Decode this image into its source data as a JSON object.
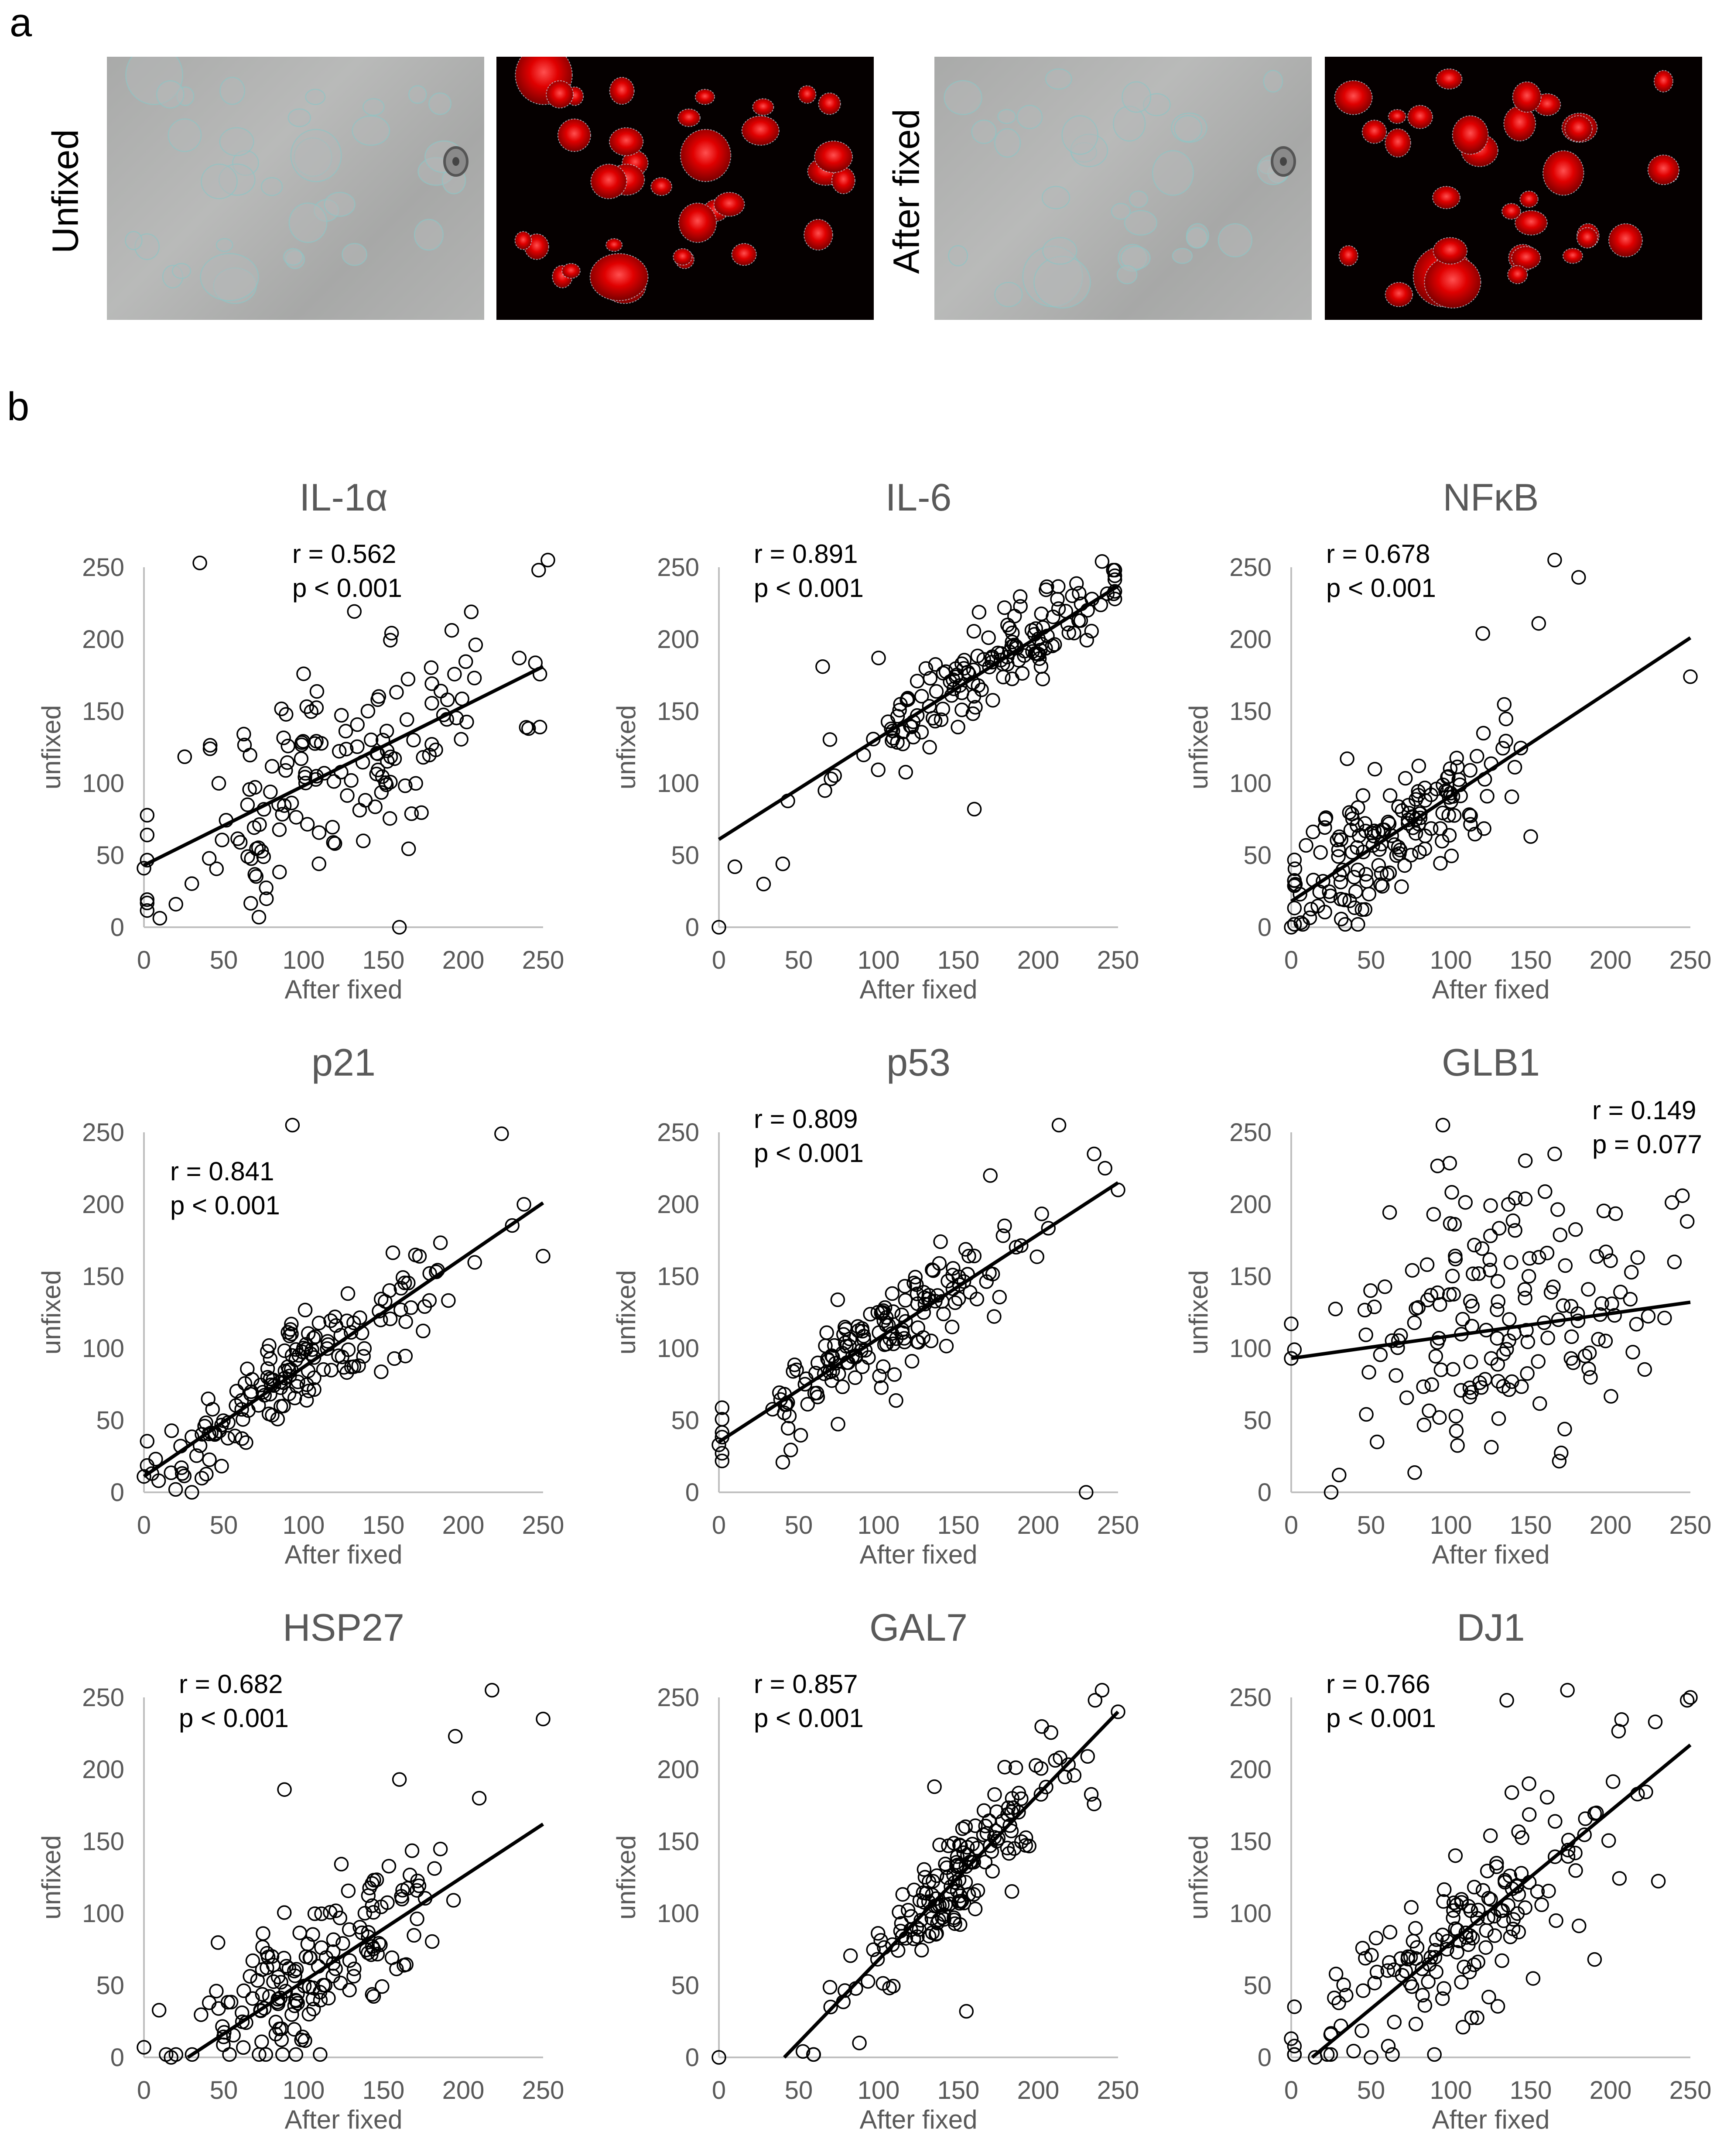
{
  "figure": {
    "panel_a_label": "a",
    "panel_b_label": "b",
    "panel_a": {
      "row_labels": [
        "Unfixed",
        "After fixed"
      ],
      "images": [
        {
          "name": "unfixed-brightfield",
          "kind": "brightfield"
        },
        {
          "name": "unfixed-fluorescence",
          "kind": "fluorescence"
        },
        {
          "name": "after-fixed-brightfield",
          "kind": "brightfield"
        },
        {
          "name": "after-fixed-fluorescence",
          "kind": "fluorescence"
        }
      ]
    }
  },
  "chart_data": [
    {
      "type": "scatter",
      "title": "IL-1α",
      "xlabel": "After fixed",
      "ylabel": "unfixed",
      "xlim": [
        0,
        250
      ],
      "ylim": [
        0,
        250
      ],
      "xticks": [
        0,
        50,
        100,
        150,
        200,
        250
      ],
      "yticks": [
        0,
        50,
        100,
        150,
        200,
        250
      ],
      "r_text": "r = 0.562",
      "p_text": "p < 0.001",
      "annot_pos": "top-center",
      "trendline": [
        [
          0,
          43
        ],
        [
          250,
          181
        ]
      ],
      "seed": 11,
      "n": 150,
      "noise": 38,
      "xcenter": 120,
      "xspread": 55,
      "anchor_points": [
        [
          35,
          253
        ],
        [
          253,
          255
        ],
        [
          0,
          41
        ],
        [
          160,
          0
        ],
        [
          72,
          7
        ],
        [
          20,
          16
        ],
        [
          205,
          219
        ],
        [
          100,
          176
        ]
      ]
    },
    {
      "type": "scatter",
      "title": "IL-6",
      "xlabel": "After fixed",
      "ylabel": "unfixed",
      "xlim": [
        0,
        250
      ],
      "ylim": [
        0,
        250
      ],
      "xticks": [
        0,
        50,
        100,
        150,
        200,
        250
      ],
      "yticks": [
        0,
        50,
        100,
        150,
        200,
        250
      ],
      "r_text": "r = 0.891",
      "p_text": "p < 0.001",
      "annot_pos": "top-left",
      "trendline": [
        [
          0,
          61
        ],
        [
          250,
          237
        ]
      ],
      "seed": 23,
      "n": 150,
      "noise": 14,
      "xcenter": 165,
      "xspread": 45,
      "anchor_points": [
        [
          0,
          0
        ],
        [
          10,
          42
        ],
        [
          28,
          30
        ],
        [
          40,
          44
        ],
        [
          240,
          254
        ],
        [
          160,
          82
        ],
        [
          65,
          181
        ],
        [
          100,
          187
        ]
      ]
    },
    {
      "type": "scatter",
      "title": "NFκB",
      "xlabel": "After fixed",
      "ylabel": "unfixed",
      "xlim": [
        0,
        250
      ],
      "ylim": [
        0,
        250
      ],
      "xticks": [
        0,
        50,
        100,
        150,
        200,
        250
      ],
      "yticks": [
        0,
        50,
        100,
        150,
        200,
        250
      ],
      "r_text": "r = 0.678",
      "p_text": "p < 0.001",
      "annot_pos": "top-left",
      "trendline": [
        [
          0,
          18
        ],
        [
          250,
          201
        ]
      ],
      "seed": 37,
      "n": 160,
      "noise": 22,
      "xcenter": 60,
      "xspread": 35,
      "anchor_points": [
        [
          0,
          0
        ],
        [
          165,
          255
        ],
        [
          180,
          243
        ],
        [
          250,
          174
        ],
        [
          120,
          204
        ],
        [
          155,
          211
        ],
        [
          150,
          63
        ],
        [
          35,
          117
        ]
      ]
    },
    {
      "type": "scatter",
      "title": "p21",
      "xlabel": "After fixed",
      "ylabel": "unfixed",
      "xlim": [
        0,
        250
      ],
      "ylim": [
        0,
        250
      ],
      "xticks": [
        0,
        50,
        100,
        150,
        200,
        250
      ],
      "yticks": [
        0,
        50,
        100,
        150,
        200,
        250
      ],
      "r_text": "r = 0.841",
      "p_text": "p < 0.001",
      "annot_pos": "upper-left",
      "trendline": [
        [
          0,
          11
        ],
        [
          250,
          201
        ]
      ],
      "seed": 41,
      "n": 160,
      "noise": 16,
      "xcenter": 100,
      "xspread": 50,
      "anchor_points": [
        [
          93,
          255
        ],
        [
          224,
          249
        ],
        [
          30,
          0
        ],
        [
          250,
          164
        ],
        [
          238,
          200
        ],
        [
          0,
          11
        ],
        [
          5,
          13
        ]
      ]
    },
    {
      "type": "scatter",
      "title": "p53",
      "xlabel": "After fixed",
      "ylabel": "unfixed",
      "xlim": [
        0,
        250
      ],
      "ylim": [
        0,
        250
      ],
      "xticks": [
        0,
        50,
        100,
        150,
        200,
        250
      ],
      "yticks": [
        0,
        50,
        100,
        150,
        200,
        250
      ],
      "r_text": "r = 0.809",
      "p_text": "p < 0.001",
      "annot_pos": "top-left",
      "trendline": [
        [
          0,
          35
        ],
        [
          250,
          215
        ]
      ],
      "seed": 53,
      "n": 160,
      "noise": 18,
      "xcenter": 105,
      "xspread": 50,
      "anchor_points": [
        [
          0,
          33
        ],
        [
          230,
          0
        ],
        [
          213,
          255
        ],
        [
          235,
          235
        ],
        [
          250,
          210
        ],
        [
          170,
          220
        ]
      ]
    },
    {
      "type": "scatter",
      "title": "GLB1",
      "xlabel": "After fixed",
      "ylabel": "unfixed",
      "xlim": [
        0,
        250
      ],
      "ylim": [
        0,
        250
      ],
      "xticks": [
        0,
        50,
        100,
        150,
        200,
        250
      ],
      "yticks": [
        0,
        50,
        100,
        150,
        200,
        250
      ],
      "r_text": "r = 0.149",
      "p_text": "p = 0.077",
      "annot_pos": "top-right",
      "trendline": [
        [
          0,
          93
        ],
        [
          250,
          132
        ]
      ],
      "seed": 67,
      "n": 160,
      "noise": 45,
      "xcenter": 125,
      "xspread": 45,
      "anchor_points": [
        [
          95,
          255
        ],
        [
          0,
          117
        ],
        [
          25,
          0
        ],
        [
          0,
          93
        ],
        [
          30,
          12
        ],
        [
          245,
          206
        ],
        [
          165,
          235
        ],
        [
          240,
          160
        ]
      ]
    },
    {
      "type": "scatter",
      "title": "HSP27",
      "xlabel": "After fixed",
      "ylabel": "unfixed",
      "xlim": [
        0,
        250
      ],
      "ylim": [
        0,
        250
      ],
      "xticks": [
        0,
        50,
        100,
        150,
        200,
        250
      ],
      "yticks": [
        0,
        50,
        100,
        150,
        200,
        250
      ],
      "r_text": "r = 0.682",
      "p_text": "p < 0.001",
      "annot_pos": "top-left",
      "trendline": [
        [
          0,
          -20
        ],
        [
          250,
          162
        ]
      ],
      "seed": 71,
      "n": 160,
      "noise": 28,
      "xcenter": 110,
      "xspread": 45,
      "anchor_points": [
        [
          0,
          7
        ],
        [
          218,
          255
        ],
        [
          250,
          235
        ],
        [
          195,
          223
        ],
        [
          88,
          186
        ],
        [
          160,
          193
        ],
        [
          210,
          180
        ],
        [
          17,
          0
        ]
      ]
    },
    {
      "type": "scatter",
      "title": "GAL7",
      "xlabel": "After fixed",
      "ylabel": "unfixed",
      "xlim": [
        0,
        250
      ],
      "ylim": [
        0,
        250
      ],
      "xticks": [
        0,
        50,
        100,
        150,
        200,
        250
      ],
      "yticks": [
        0,
        50,
        100,
        150,
        200,
        250
      ],
      "r_text": "r = 0.857",
      "p_text": "p < 0.001",
      "annot_pos": "top-left",
      "trendline": [
        [
          0,
          -47
        ],
        [
          250,
          240
        ]
      ],
      "seed": 83,
      "n": 160,
      "noise": 18,
      "xcenter": 150,
      "xspread": 35,
      "anchor_points": [
        [
          0,
          0
        ],
        [
          240,
          255
        ],
        [
          250,
          240
        ],
        [
          235,
          176
        ],
        [
          155,
          32
        ],
        [
          88,
          10
        ],
        [
          70,
          35
        ],
        [
          135,
          188
        ]
      ]
    },
    {
      "type": "scatter",
      "title": "DJ1",
      "xlabel": "After fixed",
      "ylabel": "unfixed",
      "xlim": [
        0,
        250
      ],
      "ylim": [
        0,
        250
      ],
      "xticks": [
        0,
        50,
        100,
        150,
        200,
        250
      ],
      "yticks": [
        0,
        50,
        100,
        150,
        200,
        250
      ],
      "r_text": "r = 0.766",
      "p_text": "p < 0.001",
      "annot_pos": "top-left",
      "trendline": [
        [
          0,
          -12
        ],
        [
          250,
          217
        ]
      ],
      "seed": 97,
      "n": 160,
      "noise": 32,
      "xcenter": 95,
      "xspread": 55,
      "anchor_points": [
        [
          0,
          13
        ],
        [
          173,
          255
        ],
        [
          135,
          248
        ],
        [
          250,
          250
        ],
        [
          228,
          233
        ],
        [
          190,
          68
        ],
        [
          50,
          0
        ],
        [
          15,
          0
        ]
      ]
    }
  ]
}
